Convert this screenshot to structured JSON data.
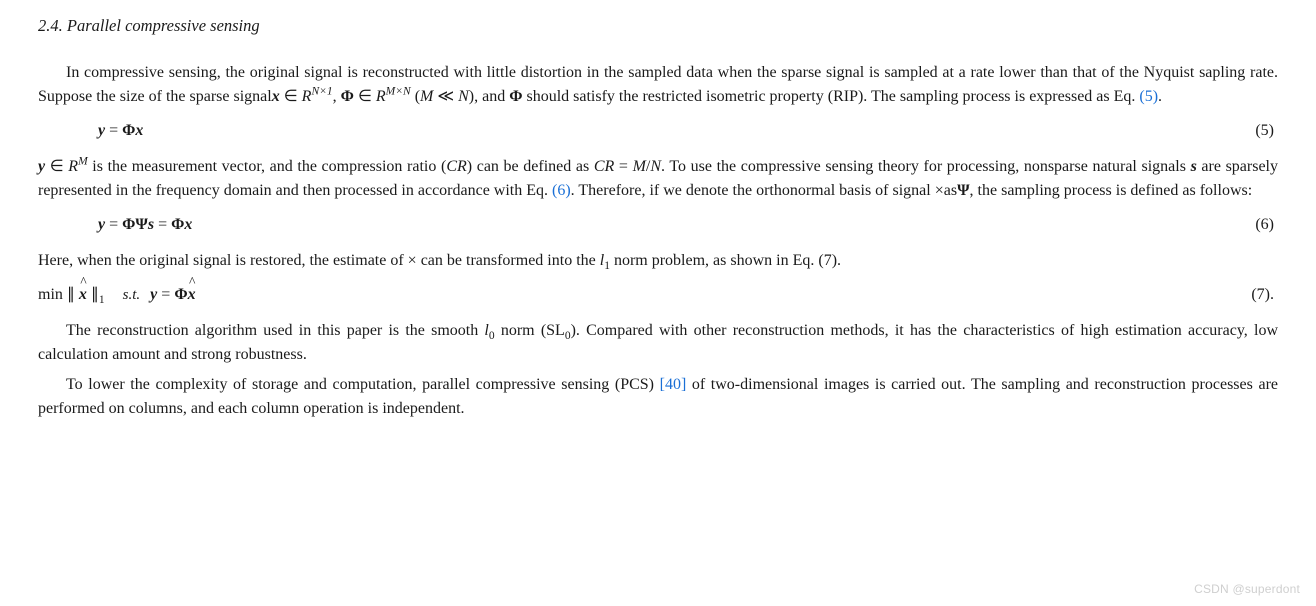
{
  "heading": "2.4. Parallel compressive sensing",
  "p1_a": "In compressive sensing, the original signal is reconstructed with little distortion in the sampled data when the sparse signal is sampled at a rate lower than that of the Nyquist sapling rate. Suppose the size of the sparse signal",
  "x": "x",
  "in": " ∈ ",
  "R": "R",
  "sup_Nx1": "N×1",
  "comma_sp": ", ",
  "Phi": "Φ",
  "sup_MxN": "M×N",
  "p1_b": " (",
  "M": "M",
  "much_less": " ≪ ",
  "N": "N",
  "p1_c": "), and ",
  "p1_d": " should satisfy the restricted isometric property (RIP). The sampling process is expressed as Eq. ",
  "ref5": "(5)",
  "dot": ".",
  "eq5": {
    "y": "y",
    "eq": " = ",
    "Phi": "Φ",
    "x": "x",
    "num": "(5)"
  },
  "p2_a_y": "y",
  "p2_a_in": " ∈ ",
  "p2_a_R": "R",
  "p2_a_supM": "M",
  "p2_b": " is the measurement vector, and the compression ratio (",
  "CR": "CR",
  "p2_c": ") can be defined as ",
  "p2_eq": " = ",
  "slash": "/",
  "p2_d": ". To use the compressive sensing theory for processing, nonsparse natural signals ",
  "s": "s",
  "p2_e": " are sparsely represented in the frequency domain and then processed in accordance with Eq. ",
  "ref6": "(6)",
  "p2_f": ". Therefore, if we denote the orthonormal basis of signal ×as",
  "Psi": "Ψ",
  "p2_g": ", the sampling process is defined as follows:",
  "eq6": {
    "y": "y",
    "eq": " = ",
    "Phi": "Φ",
    "Psi": "Ψ",
    "s": "s",
    "eq2": " = ",
    "Phi2": "Φ",
    "x": "x",
    "num": "(6)"
  },
  "p3_a": "Here, when the original signal is restored, the estimate of × can be transformed into the ",
  "l": "l",
  "sub1": "1",
  "p3_b": " norm problem, as shown in Eq. (7).",
  "eq7": {
    "min": "min",
    "open": " ∥ ",
    "x": "x",
    "close": " ∥",
    "sub1": "1",
    "st": "s.t.",
    "y": "y",
    "eq": " = ",
    "Phi": "Φ",
    "xhat": "x",
    "num": "(7)."
  },
  "p4_a": "The reconstruction algorithm used in this paper is the smooth ",
  "sub0": "0",
  "p4_b": " norm (SL",
  "p4_c": "). Compared with other reconstruction methods, it has the characteristics of high estimation accuracy, low calculation amount and strong robustness.",
  "p5_a": "To lower the complexity of storage and computation, parallel compressive sensing (PCS) ",
  "ref40": "[40]",
  "p5_b": " of two-dimensional images is carried out. The sampling and reconstruction processes are performed on columns, and each column operation is independent.",
  "watermark": "CSDN @superdont"
}
